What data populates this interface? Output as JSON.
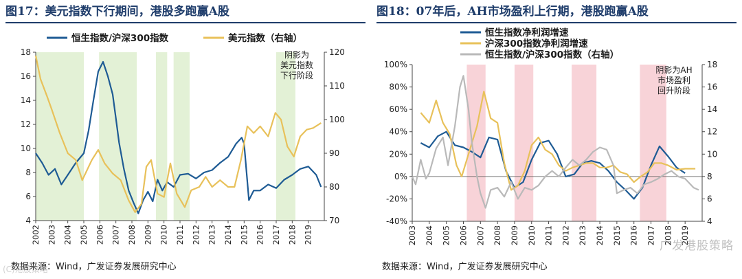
{
  "left": {
    "title": "图17：美元指数下行期间，港股多跑赢A股",
    "source": "数据来源：Wind，广发证券发展研究中心",
    "watermark": "(C)港股策略"
  },
  "right": {
    "title": "图18：07年后，AH市场盈利上行期，港股跑赢A股",
    "source": "数据来源：Wind，广发证券发展研究中心",
    "watermark": "广发港股策略"
  },
  "chart_data": [
    {
      "type": "line",
      "title": "图17：美元指数下行期间，港股多跑赢A股",
      "x_ticks": [
        "2002",
        "2003",
        "2004",
        "2005",
        "2006",
        "2007",
        "2008",
        "2009",
        "2010",
        "2011",
        "2012",
        "2013",
        "2014",
        "2015",
        "2016",
        "2017",
        "2018",
        "2019"
      ],
      "xlim": [
        2002,
        2020
      ],
      "ylim_left": [
        4,
        18
      ],
      "yticks_left": [
        "4",
        "6",
        "8",
        "10",
        "12",
        "14",
        "16",
        "18"
      ],
      "ylim_right": [
        70,
        120
      ],
      "yticks_right": [
        "70",
        "80",
        "90",
        "100",
        "110",
        "120"
      ],
      "legend_position": "top",
      "shaded_periods": [
        [
          2002.0,
          2005.0
        ],
        [
          2005.95,
          2008.3
        ],
        [
          2009.5,
          2010.2
        ],
        [
          2010.6,
          2011.6
        ],
        [
          2017.0,
          2018.2
        ]
      ],
      "shading_color": "#e3f1d6",
      "annotation": "阴影为\n美元指数\n下行阶段",
      "series": [
        {
          "name": "恒生指数/沪深300指数",
          "axis": "left",
          "color": "#1e5b94",
          "points": [
            [
              2002.0,
              9.6
            ],
            [
              2002.4,
              8.8
            ],
            [
              2002.8,
              7.8
            ],
            [
              2003.2,
              8.3
            ],
            [
              2003.6,
              7.0
            ],
            [
              2004.0,
              7.8
            ],
            [
              2004.5,
              8.8
            ],
            [
              2005.0,
              9.6
            ],
            [
              2005.3,
              11.5
            ],
            [
              2005.6,
              14.0
            ],
            [
              2005.9,
              16.4
            ],
            [
              2006.2,
              17.2
            ],
            [
              2006.5,
              16.0
            ],
            [
              2006.8,
              14.5
            ],
            [
              2007.0,
              12.5
            ],
            [
              2007.2,
              10.5
            ],
            [
              2007.5,
              8.3
            ],
            [
              2007.8,
              6.5
            ],
            [
              2008.1,
              5.5
            ],
            [
              2008.4,
              4.6
            ],
            [
              2008.7,
              5.7
            ],
            [
              2009.0,
              6.4
            ],
            [
              2009.3,
              5.6
            ],
            [
              2009.6,
              7.4
            ],
            [
              2009.9,
              6.5
            ],
            [
              2010.2,
              7.2
            ],
            [
              2010.6,
              6.8
            ],
            [
              2011.0,
              7.8
            ],
            [
              2011.5,
              7.9
            ],
            [
              2012.0,
              7.5
            ],
            [
              2012.5,
              8.0
            ],
            [
              2013.0,
              8.2
            ],
            [
              2013.5,
              8.8
            ],
            [
              2014.0,
              9.3
            ],
            [
              2014.5,
              10.4
            ],
            [
              2014.85,
              10.9
            ],
            [
              2015.0,
              10.4
            ],
            [
              2015.3,
              5.7
            ],
            [
              2015.6,
              6.5
            ],
            [
              2016.0,
              6.5
            ],
            [
              2016.5,
              7.0
            ],
            [
              2017.0,
              6.7
            ],
            [
              2017.5,
              7.4
            ],
            [
              2018.0,
              7.8
            ],
            [
              2018.5,
              8.3
            ],
            [
              2019.0,
              8.5
            ],
            [
              2019.5,
              7.8
            ],
            [
              2019.8,
              6.8
            ]
          ]
        },
        {
          "name": "美元指数（右轴）",
          "axis": "right",
          "color": "#e8c15a",
          "points": [
            [
              2002.0,
              119.0
            ],
            [
              2002.3,
              112.0
            ],
            [
              2002.7,
              107.0
            ],
            [
              2003.0,
              103.0
            ],
            [
              2003.5,
              96.0
            ],
            [
              2004.0,
              90.0
            ],
            [
              2004.5,
              88.0
            ],
            [
              2004.9,
              82.0
            ],
            [
              2005.5,
              88.0
            ],
            [
              2005.9,
              91.0
            ],
            [
              2006.3,
              87.0
            ],
            [
              2006.8,
              84.0
            ],
            [
              2007.3,
              82.0
            ],
            [
              2007.8,
              76.0
            ],
            [
              2008.2,
              72.5
            ],
            [
              2008.6,
              75.0
            ],
            [
              2008.9,
              86.0
            ],
            [
              2009.2,
              88.0
            ],
            [
              2009.6,
              78.0
            ],
            [
              2010.0,
              77.0
            ],
            [
              2010.4,
              87.0
            ],
            [
              2010.8,
              78.0
            ],
            [
              2011.3,
              74.0
            ],
            [
              2011.7,
              79.0
            ],
            [
              2012.2,
              80.0
            ],
            [
              2012.6,
              83.0
            ],
            [
              2013.0,
              80.0
            ],
            [
              2013.5,
              82.0
            ],
            [
              2014.0,
              80.0
            ],
            [
              2014.4,
              80.0
            ],
            [
              2014.8,
              88.0
            ],
            [
              2015.2,
              98.0
            ],
            [
              2015.6,
              96.0
            ],
            [
              2016.0,
              98.0
            ],
            [
              2016.5,
              95.0
            ],
            [
              2016.95,
              102.0
            ],
            [
              2017.3,
              100.0
            ],
            [
              2017.7,
              92.0
            ],
            [
              2018.1,
              89.0
            ],
            [
              2018.5,
              95.0
            ],
            [
              2018.9,
              97.0
            ],
            [
              2019.3,
              97.5
            ],
            [
              2019.8,
              99.0
            ]
          ]
        }
      ]
    },
    {
      "type": "line",
      "title": "图18：07年后，AH市场盈利上行期，港股跑赢A股",
      "x_ticks": [
        "2003",
        "2004",
        "2005",
        "2006",
        "2007",
        "2008",
        "2009",
        "2010",
        "2011",
        "2012",
        "2013",
        "2014",
        "2015",
        "2016",
        "2017",
        "2018",
        "2019"
      ],
      "xlim": [
        2003,
        2020
      ],
      "ylim_left": [
        -40,
        100
      ],
      "yticks_left": [
        "-40%",
        "-20%",
        "0%",
        "20%",
        "40%",
        "60%",
        "80%",
        "100%"
      ],
      "ylim_right": [
        4,
        18
      ],
      "yticks_right": [
        "4",
        "6",
        "8",
        "10",
        "12",
        "14",
        "16",
        "18"
      ],
      "legend_position": "top-left",
      "shaded_periods": [
        [
          2006.2,
          2007.3
        ],
        [
          2009.0,
          2010.1
        ],
        [
          2012.35,
          2013.8
        ],
        [
          2016.35,
          2017.9
        ]
      ],
      "shading_color": "#f8d3d8",
      "annotation": "阴影为AH\n市场盈利\n回升阶段",
      "series": [
        {
          "name": "恒生指数净利润增速",
          "axis": "left",
          "color": "#1e5b94",
          "points": [
            [
              2003.5,
              30
            ],
            [
              2004.0,
              26
            ],
            [
              2004.5,
              36
            ],
            [
              2005.0,
              40
            ],
            [
              2005.5,
              28
            ],
            [
              2006.0,
              26
            ],
            [
              2006.5,
              22
            ],
            [
              2007.0,
              17
            ],
            [
              2007.5,
              35
            ],
            [
              2008.0,
              33
            ],
            [
              2008.5,
              5
            ],
            [
              2009.0,
              -10
            ],
            [
              2009.5,
              -5
            ],
            [
              2010.0,
              15
            ],
            [
              2010.5,
              30
            ],
            [
              2011.0,
              32
            ],
            [
              2011.5,
              20
            ],
            [
              2012.0,
              0
            ],
            [
              2012.5,
              2
            ],
            [
              2013.0,
              12
            ],
            [
              2013.5,
              14
            ],
            [
              2014.0,
              12
            ],
            [
              2014.5,
              5
            ],
            [
              2015.0,
              -5
            ],
            [
              2015.5,
              -12
            ],
            [
              2016.0,
              -20
            ],
            [
              2016.5,
              -10
            ],
            [
              2017.0,
              10
            ],
            [
              2017.5,
              27
            ],
            [
              2018.0,
              18
            ],
            [
              2018.5,
              8
            ],
            [
              2019.0,
              3
            ]
          ]
        },
        {
          "name": "沪深300指数净利润增速",
          "axis": "left",
          "color": "#e8c15a",
          "points": [
            [
              2003.5,
              57
            ],
            [
              2004.0,
              48
            ],
            [
              2004.4,
              68
            ],
            [
              2004.8,
              48
            ],
            [
              2005.2,
              38
            ],
            [
              2005.6,
              10
            ],
            [
              2005.9,
              0
            ],
            [
              2006.3,
              20
            ],
            [
              2006.8,
              45
            ],
            [
              2007.2,
              76
            ],
            [
              2007.6,
              52
            ],
            [
              2008.0,
              48
            ],
            [
              2008.4,
              12
            ],
            [
              2008.8,
              -12
            ],
            [
              2009.2,
              -8
            ],
            [
              2009.6,
              5
            ],
            [
              2010.0,
              28
            ],
            [
              2010.4,
              35
            ],
            [
              2010.8,
              24
            ],
            [
              2011.2,
              20
            ],
            [
              2011.6,
              10
            ],
            [
              2012.0,
              5
            ],
            [
              2012.4,
              8
            ],
            [
              2012.8,
              10
            ],
            [
              2013.2,
              12
            ],
            [
              2013.6,
              12
            ],
            [
              2014.0,
              8
            ],
            [
              2014.4,
              8
            ],
            [
              2014.8,
              10
            ],
            [
              2015.2,
              4
            ],
            [
              2015.6,
              2
            ],
            [
              2016.0,
              -5
            ],
            [
              2016.4,
              0
            ],
            [
              2016.8,
              4
            ],
            [
              2017.2,
              12
            ],
            [
              2017.6,
              12
            ],
            [
              2018.0,
              10
            ],
            [
              2018.5,
              6
            ],
            [
              2019.0,
              7
            ],
            [
              2019.6,
              7
            ]
          ]
        },
        {
          "name": "恒生指数/沪深300指数（右轴）",
          "axis": "right",
          "color": "#b9b9b9",
          "points": [
            [
              2003.0,
              8.0
            ],
            [
              2003.2,
              7.3
            ],
            [
              2003.5,
              9.5
            ],
            [
              2003.8,
              7.8
            ],
            [
              2004.0,
              8.3
            ],
            [
              2004.4,
              10.5
            ],
            [
              2004.8,
              11.5
            ],
            [
              2005.1,
              9.0
            ],
            [
              2005.5,
              12.5
            ],
            [
              2005.8,
              16.0
            ],
            [
              2006.0,
              17.0
            ],
            [
              2006.3,
              14.0
            ],
            [
              2006.5,
              11.0
            ],
            [
              2006.8,
              8.0
            ],
            [
              2007.0,
              6.5
            ],
            [
              2007.3,
              5.2
            ],
            [
              2007.6,
              6.8
            ],
            [
              2008.0,
              7.0
            ],
            [
              2008.4,
              6.2
            ],
            [
              2008.8,
              7.5
            ],
            [
              2009.2,
              6.0
            ],
            [
              2009.6,
              7.0
            ],
            [
              2010.0,
              6.8
            ],
            [
              2010.4,
              7.2
            ],
            [
              2010.8,
              8.0
            ],
            [
              2011.2,
              8.5
            ],
            [
              2011.6,
              8.0
            ],
            [
              2012.0,
              8.8
            ],
            [
              2012.4,
              9.5
            ],
            [
              2012.8,
              9.0
            ],
            [
              2013.2,
              9.5
            ],
            [
              2013.6,
              10.2
            ],
            [
              2014.0,
              10.6
            ],
            [
              2014.4,
              10.4
            ],
            [
              2014.8,
              9.0
            ],
            [
              2015.0,
              6.5
            ],
            [
              2015.4,
              6.8
            ],
            [
              2015.8,
              7.0
            ],
            [
              2016.2,
              6.5
            ],
            [
              2016.6,
              7.3
            ],
            [
              2017.0,
              7.5
            ],
            [
              2017.4,
              7.8
            ],
            [
              2017.8,
              8.2
            ],
            [
              2018.2,
              8.5
            ],
            [
              2018.6,
              8.0
            ],
            [
              2019.0,
              7.8
            ],
            [
              2019.5,
              7.0
            ],
            [
              2019.8,
              6.8
            ]
          ]
        }
      ]
    }
  ]
}
